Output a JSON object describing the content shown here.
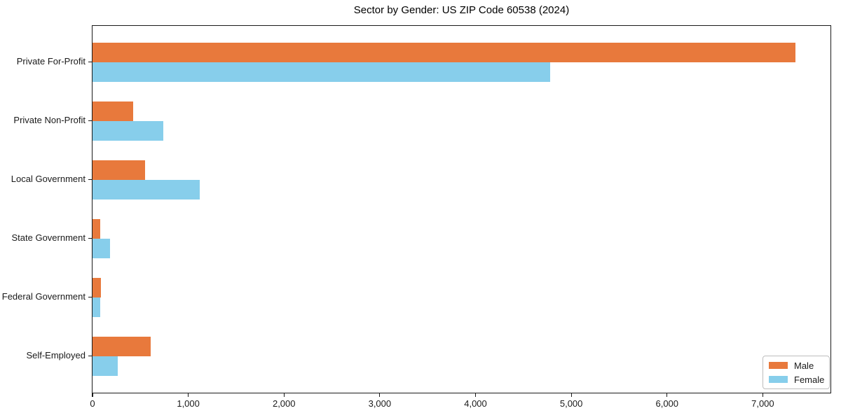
{
  "chart_data": {
    "type": "bar",
    "orientation": "horizontal",
    "title": "Sector by Gender: US ZIP Code 60538 (2024)",
    "xlabel": "",
    "ylabel": "",
    "categories": [
      "Private For-Profit",
      "Private Non-Profit",
      "Local Government",
      "State Government",
      "Federal Government",
      "Self-Employed"
    ],
    "series": [
      {
        "name": "Male",
        "color": "#e8793c",
        "values": [
          7340,
          425,
          550,
          80,
          85,
          610
        ]
      },
      {
        "name": "Female",
        "color": "#87ceeb",
        "values": [
          4780,
          740,
          1120,
          180,
          80,
          260
        ]
      }
    ],
    "xlim": [
      0,
      7707
    ],
    "xticks": [
      0,
      1000,
      2000,
      3000,
      4000,
      5000,
      6000,
      7000
    ],
    "xtick_labels": [
      "0",
      "1,000",
      "2,000",
      "3,000",
      "4,000",
      "5,000",
      "6,000",
      "7,000"
    ],
    "grid": false,
    "legend_position": "lower right"
  }
}
